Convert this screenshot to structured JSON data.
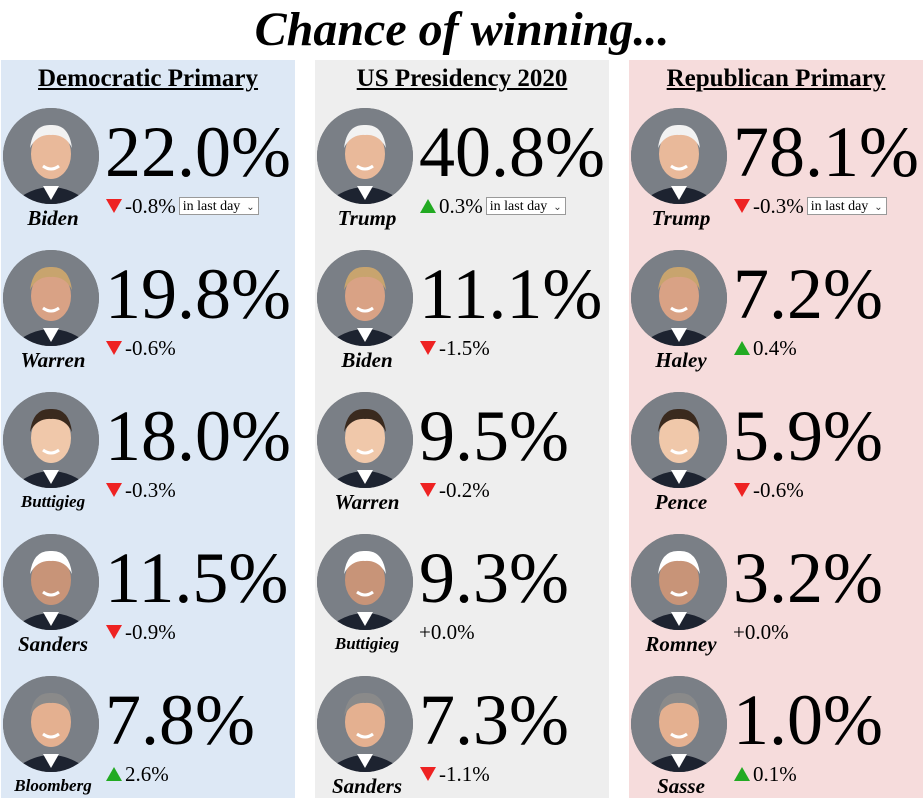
{
  "title": "Chance of winning...",
  "period_select": "in last day",
  "colors": {
    "down": "#ee2222",
    "up": "#22aa22",
    "dem_bg": "#dde8f5",
    "pres_bg": "#eeeeee",
    "rep_bg": "#f6dcdc"
  },
  "columns": [
    {
      "title": "Democratic Primary",
      "candidates": [
        {
          "name": "Biden",
          "pct": "22.0%",
          "dir": "down",
          "change": "-0.8%"
        },
        {
          "name": "Warren",
          "pct": "19.8%",
          "dir": "down",
          "change": "-0.6%"
        },
        {
          "name": "Buttigieg",
          "pct": "18.0%",
          "dir": "down",
          "change": "-0.3%"
        },
        {
          "name": "Sanders",
          "pct": "11.5%",
          "dir": "down",
          "change": "-0.9%"
        },
        {
          "name": "Bloomberg",
          "pct": "7.8%",
          "dir": "up",
          "change": "2.6%"
        }
      ]
    },
    {
      "title": "US Presidency 2020",
      "candidates": [
        {
          "name": "Trump",
          "pct": "40.8%",
          "dir": "up",
          "change": "0.3%"
        },
        {
          "name": "Biden",
          "pct": "11.1%",
          "dir": "down",
          "change": "-1.5%"
        },
        {
          "name": "Warren",
          "pct": "9.5%",
          "dir": "down",
          "change": "-0.2%"
        },
        {
          "name": "Buttigieg",
          "pct": "9.3%",
          "dir": "none",
          "change": "+0.0%"
        },
        {
          "name": "Sanders",
          "pct": "7.3%",
          "dir": "down",
          "change": "-1.1%"
        }
      ]
    },
    {
      "title": "Republican Primary",
      "candidates": [
        {
          "name": "Trump",
          "pct": "78.1%",
          "dir": "down",
          "change": "-0.3%"
        },
        {
          "name": "Haley",
          "pct": "7.2%",
          "dir": "up",
          "change": "0.4%"
        },
        {
          "name": "Pence",
          "pct": "5.9%",
          "dir": "down",
          "change": "-0.6%"
        },
        {
          "name": "Romney",
          "pct": "3.2%",
          "dir": "none",
          "change": "+0.0%"
        },
        {
          "name": "Sasse",
          "pct": "1.0%",
          "dir": "up",
          "change": "0.1%"
        }
      ]
    }
  ]
}
